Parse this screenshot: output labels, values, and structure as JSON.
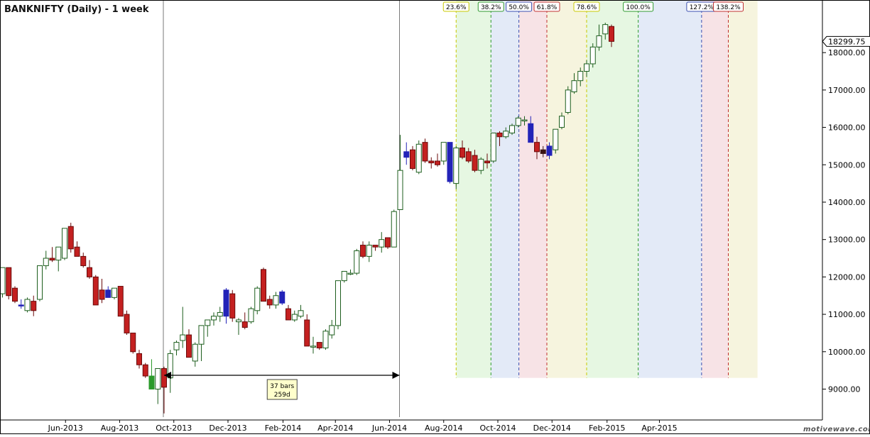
{
  "chart_data": {
    "type": "candlestick",
    "title": "BANKNIFTY (Daily) - 1 week",
    "y_axis": {
      "range": [
        8250,
        18800
      ],
      "ticks": [
        "9000.00",
        "10000.00",
        "11000.00",
        "12000.00",
        "13000.00",
        "14000.00",
        "15000.00",
        "16000.00",
        "17000.00",
        "18000.00"
      ],
      "tick_values": [
        9000,
        10000,
        11000,
        12000,
        13000,
        14000,
        15000,
        16000,
        17000,
        18000
      ],
      "last_price_label": "18299.75",
      "last_price": 18299.75
    },
    "x_axis": {
      "ticks": [
        "Jun-2013",
        "Aug-2013",
        "Oct-2013",
        "Dec-2013",
        "Feb-2014",
        "Apr-2014",
        "Jun-2014",
        "Aug-2014",
        "Oct-2014",
        "Dec-2014",
        "Feb-2015",
        "Apr-2015"
      ],
      "first_bar_date": "2013-03-22",
      "bar_interval": "1 week"
    },
    "candles": [
      {
        "o": 11550,
        "h": 12250,
        "l": 11450,
        "c": 12250
      },
      {
        "o": 12250,
        "h": 12250,
        "l": 11400,
        "c": 11500
      },
      {
        "o": 11700,
        "h": 11750,
        "l": 11300,
        "c": 11350
      },
      {
        "o": 11250,
        "h": 11400,
        "l": 11150,
        "c": 11250
      },
      {
        "o": 11100,
        "h": 11450,
        "l": 11050,
        "c": 11400
      },
      {
        "o": 11350,
        "h": 11500,
        "l": 10950,
        "c": 11100
      },
      {
        "o": 11400,
        "h": 12300,
        "l": 11350,
        "c": 12300
      },
      {
        "o": 12300,
        "h": 12700,
        "l": 12200,
        "c": 12500
      },
      {
        "o": 12500,
        "h": 12800,
        "l": 12400,
        "c": 12450
      },
      {
        "o": 12450,
        "h": 12800,
        "l": 12150,
        "c": 12800
      },
      {
        "o": 12500,
        "h": 13300,
        "l": 12450,
        "c": 13300
      },
      {
        "o": 13350,
        "h": 13450,
        "l": 12650,
        "c": 12750
      },
      {
        "o": 12800,
        "h": 12950,
        "l": 12550,
        "c": 12550
      },
      {
        "o": 12550,
        "h": 12650,
        "l": 12250,
        "c": 12300
      },
      {
        "o": 12250,
        "h": 12450,
        "l": 11950,
        "c": 12000
      },
      {
        "o": 12000,
        "h": 12050,
        "l": 11250,
        "c": 11250
      },
      {
        "o": 11650,
        "h": 11950,
        "l": 11300,
        "c": 11400
      },
      {
        "o": 11650,
        "h": 11750,
        "l": 11450,
        "c": 11450
      },
      {
        "o": 11450,
        "h": 11700,
        "l": 11400,
        "c": 11700
      },
      {
        "o": 11750,
        "h": 11750,
        "l": 10950,
        "c": 10950
      },
      {
        "o": 11000,
        "h": 11100,
        "l": 10450,
        "c": 10500
      },
      {
        "o": 10500,
        "h": 10500,
        "l": 9950,
        "c": 10000
      },
      {
        "o": 9950,
        "h": 10050,
        "l": 9550,
        "c": 9650
      },
      {
        "o": 9650,
        "h": 9700,
        "l": 9300,
        "c": 9350
      },
      {
        "o": 9350,
        "h": 9800,
        "l": 9000,
        "c": 9000
      },
      {
        "o": 9000,
        "h": 9550,
        "l": 8600,
        "c": 9550
      },
      {
        "o": 9550,
        "h": 9600,
        "l": 8350,
        "c": 9050
      },
      {
        "o": 9300,
        "h": 10050,
        "l": 8900,
        "c": 9950
      },
      {
        "o": 10050,
        "h": 10300,
        "l": 9900,
        "c": 10250
      },
      {
        "o": 10300,
        "h": 11200,
        "l": 10100,
        "c": 10450
      },
      {
        "o": 10450,
        "h": 10600,
        "l": 9850,
        "c": 9850
      },
      {
        "o": 9750,
        "h": 10250,
        "l": 9600,
        "c": 10200
      },
      {
        "o": 10200,
        "h": 10700,
        "l": 9750,
        "c": 10700
      },
      {
        "o": 10700,
        "h": 10850,
        "l": 10400,
        "c": 10850
      },
      {
        "o": 10850,
        "h": 11050,
        "l": 10700,
        "c": 10950
      },
      {
        "o": 10950,
        "h": 11200,
        "l": 10800,
        "c": 11050
      },
      {
        "o": 10950,
        "h": 11700,
        "l": 10750,
        "c": 11650
      },
      {
        "o": 11550,
        "h": 11650,
        "l": 10800,
        "c": 10900
      },
      {
        "o": 10800,
        "h": 10900,
        "l": 10450,
        "c": 10850
      },
      {
        "o": 10800,
        "h": 11050,
        "l": 10600,
        "c": 10650
      },
      {
        "o": 10800,
        "h": 11200,
        "l": 10750,
        "c": 11150
      },
      {
        "o": 11100,
        "h": 11750,
        "l": 11000,
        "c": 11700
      },
      {
        "o": 12200,
        "h": 12250,
        "l": 11350,
        "c": 11350
      },
      {
        "o": 11400,
        "h": 11500,
        "l": 11150,
        "c": 11250
      },
      {
        "o": 11250,
        "h": 11600,
        "l": 11150,
        "c": 11500
      },
      {
        "o": 11300,
        "h": 11650,
        "l": 11250,
        "c": 11600
      },
      {
        "o": 11150,
        "h": 11250,
        "l": 10850,
        "c": 10850
      },
      {
        "o": 10850,
        "h": 11100,
        "l": 10800,
        "c": 11000
      },
      {
        "o": 10950,
        "h": 11250,
        "l": 10900,
        "c": 11100
      },
      {
        "o": 10850,
        "h": 11000,
        "l": 10150,
        "c": 10150
      },
      {
        "o": 10150,
        "h": 10400,
        "l": 9950,
        "c": 10150
      },
      {
        "o": 10250,
        "h": 10250,
        "l": 10050,
        "c": 10100
      },
      {
        "o": 10100,
        "h": 10600,
        "l": 10050,
        "c": 10550
      },
      {
        "o": 10450,
        "h": 10850,
        "l": 10350,
        "c": 10700
      },
      {
        "o": 10700,
        "h": 11900,
        "l": 10600,
        "c": 11900
      },
      {
        "o": 11900,
        "h": 12150,
        "l": 11850,
        "c": 12150
      },
      {
        "o": 12100,
        "h": 12200,
        "l": 12050,
        "c": 12100
      },
      {
        "o": 12100,
        "h": 12750,
        "l": 12050,
        "c": 12700
      },
      {
        "o": 12850,
        "h": 12950,
        "l": 12500,
        "c": 12550
      },
      {
        "o": 12550,
        "h": 12950,
        "l": 12400,
        "c": 12850
      },
      {
        "o": 12850,
        "h": 12850,
        "l": 12700,
        "c": 12800
      },
      {
        "o": 12800,
        "h": 13200,
        "l": 12650,
        "c": 13000
      },
      {
        "o": 13050,
        "h": 13050,
        "l": 12750,
        "c": 12800
      },
      {
        "o": 12800,
        "h": 13800,
        "l": 12800,
        "c": 13750
      },
      {
        "o": 13800,
        "h": 15800,
        "l": 13800,
        "c": 14850
      },
      {
        "o": 15200,
        "h": 15600,
        "l": 15000,
        "c": 15350
      },
      {
        "o": 15400,
        "h": 15500,
        "l": 14850,
        "c": 14900
      },
      {
        "o": 14800,
        "h": 15650,
        "l": 14750,
        "c": 15550
      },
      {
        "o": 15600,
        "h": 15700,
        "l": 15050,
        "c": 15100
      },
      {
        "o": 15100,
        "h": 15200,
        "l": 14900,
        "c": 15050
      },
      {
        "o": 15100,
        "h": 15300,
        "l": 14950,
        "c": 15000
      },
      {
        "o": 15100,
        "h": 15600,
        "l": 15000,
        "c": 15600
      },
      {
        "o": 15600,
        "h": 15600,
        "l": 14500,
        "c": 14550
      },
      {
        "o": 14500,
        "h": 15500,
        "l": 14350,
        "c": 15450
      },
      {
        "o": 15450,
        "h": 15650,
        "l": 15150,
        "c": 15200
      },
      {
        "o": 15350,
        "h": 15450,
        "l": 15050,
        "c": 15100
      },
      {
        "o": 15250,
        "h": 15400,
        "l": 14800,
        "c": 14850
      },
      {
        "o": 14850,
        "h": 15200,
        "l": 14750,
        "c": 15150
      },
      {
        "o": 15100,
        "h": 15300,
        "l": 14900,
        "c": 15050
      },
      {
        "o": 15100,
        "h": 15850,
        "l": 15050,
        "c": 15850
      },
      {
        "o": 15850,
        "h": 15900,
        "l": 15500,
        "c": 15750
      },
      {
        "o": 15750,
        "h": 16000,
        "l": 15700,
        "c": 15900
      },
      {
        "o": 15850,
        "h": 16100,
        "l": 15800,
        "c": 16050
      },
      {
        "o": 16050,
        "h": 16300,
        "l": 16000,
        "c": 16250
      },
      {
        "o": 16200,
        "h": 16300,
        "l": 16050,
        "c": 16200
      },
      {
        "o": 16100,
        "h": 16300,
        "l": 15600,
        "c": 15600
      },
      {
        "o": 15600,
        "h": 15750,
        "l": 15150,
        "c": 15350
      },
      {
        "o": 15400,
        "h": 15500,
        "l": 15200,
        "c": 15300
      },
      {
        "o": 15250,
        "h": 15600,
        "l": 15150,
        "c": 15500
      },
      {
        "o": 15400,
        "h": 15950,
        "l": 15300,
        "c": 15950
      },
      {
        "o": 16000,
        "h": 16400,
        "l": 15950,
        "c": 16300
      },
      {
        "o": 16400,
        "h": 17100,
        "l": 16350,
        "c": 17000
      },
      {
        "o": 16950,
        "h": 17450,
        "l": 16900,
        "c": 17250
      },
      {
        "o": 17250,
        "h": 17600,
        "l": 17100,
        "c": 17500
      },
      {
        "o": 17500,
        "h": 17800,
        "l": 17350,
        "c": 17700
      },
      {
        "o": 17700,
        "h": 18250,
        "l": 17600,
        "c": 18150
      },
      {
        "o": 18150,
        "h": 18750,
        "l": 18050,
        "c": 18450
      },
      {
        "o": 18500,
        "h": 18800,
        "l": 18350,
        "c": 18750
      },
      {
        "o": 18700,
        "h": 18750,
        "l": 18150,
        "c": 18300
      }
    ],
    "bar_colors": {
      "24": "#2a9a2a",
      "3": "#2323b8",
      "17": "#2323b8",
      "36": "#2323b8",
      "45": "#2323b8",
      "65": "#2323b8",
      "72": "#2323b8",
      "85": "#2323b8",
      "88": "#2323b8",
      "87": "#3a1414"
    },
    "colors": {
      "up_fill": "#ffffff",
      "up_border": "#1d5e1d",
      "down_fill": "#c42020",
      "down_border": "#6a0a0a"
    },
    "time_cycle": {
      "start_bar": 26,
      "end_bar": 64,
      "label_bars": "37 bars",
      "label_days": "259d"
    },
    "fib_time_zones": [
      {
        "label": "23.6%",
        "bar": 73.0,
        "line_color": "#c8c800",
        "fill": "#e6f7e2"
      },
      {
        "label": "38.2%",
        "bar": 78.6,
        "line_color": "#2f9a2f",
        "fill": "#e3eaf7"
      },
      {
        "label": "50.0%",
        "bar": 83.1,
        "line_color": "#3a4fb0",
        "fill": "#f7e3e6"
      },
      {
        "label": "61.8%",
        "bar": 87.6,
        "line_color": "#c03030",
        "fill": "#f6f4de"
      },
      {
        "label": "78.6%",
        "bar": 94.0,
        "line_color": "#c8c800",
        "fill": "#e6f7e2"
      },
      {
        "label": "100.0%",
        "bar": 102.3,
        "line_color": "#2f9a2f",
        "fill": "#e3eaf7"
      },
      {
        "label": "127.2%",
        "bar": 112.5,
        "line_color": "#3a4fb0",
        "fill": "#f7e3e6"
      },
      {
        "label": "138.2%",
        "bar": 116.8,
        "line_color": "#c03030",
        "fill": "#f6f4de"
      }
    ],
    "fib_zone_end_bar": 121.5,
    "fib_zone_bottom": 9300,
    "grid": false,
    "watermark": "motivewave.com"
  }
}
